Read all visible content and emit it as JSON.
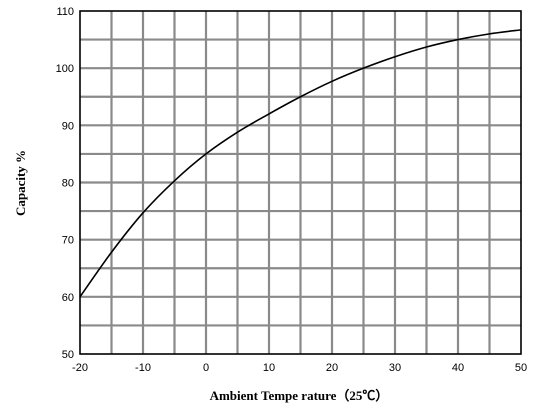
{
  "chart_data": {
    "type": "line",
    "xlabel": "Ambient Tempe rature（25℃）",
    "ylabel": "Capacity %",
    "xlim": [
      -20,
      50
    ],
    "ylim": [
      50,
      110
    ],
    "x_ticks": [
      -20,
      -10,
      0,
      10,
      20,
      30,
      40,
      50
    ],
    "y_ticks": [
      50,
      60,
      70,
      80,
      90,
      100,
      110
    ],
    "x_tick_labels": [
      "-20",
      "-10",
      "0",
      "10",
      "20",
      "30",
      "40",
      "50"
    ],
    "y_tick_labels": [
      "50",
      "60",
      "70",
      "80",
      "90",
      "100",
      "110"
    ],
    "grid": true,
    "series": [
      {
        "x": [
          -20,
          -15,
          -10,
          -5,
          0,
          5,
          10,
          15,
          20,
          25,
          30,
          35,
          40,
          45,
          50
        ],
        "y": [
          60,
          67.8,
          74.7,
          80.3,
          85,
          88.8,
          92,
          95,
          97.7,
          100,
          102,
          103.7,
          105,
          106,
          106.7
        ]
      }
    ],
    "colors": {
      "line": "#000000",
      "grid": "#8a8a8a",
      "frame": "#000000"
    }
  }
}
